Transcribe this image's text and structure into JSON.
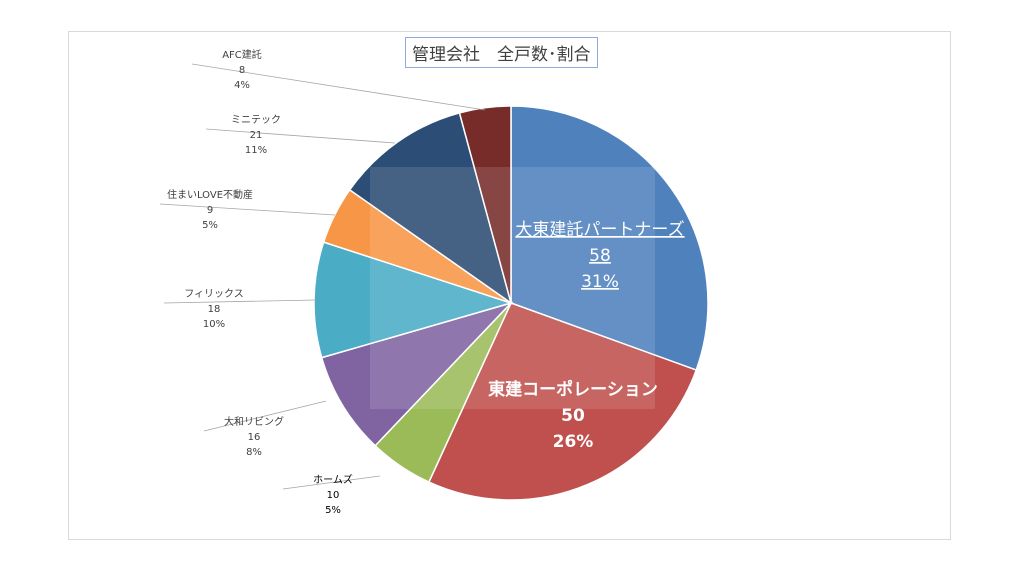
{
  "chart_data": {
    "type": "pie",
    "title": "管理会社　全戸数･割合",
    "slices": [
      {
        "name": "大東建託パートナーズ",
        "value": 58,
        "percent": "31%",
        "color": "#4f81bd"
      },
      {
        "name": "東建コーポレーション",
        "value": 50,
        "percent": "26%",
        "color": "#c0504d"
      },
      {
        "name": "ホームズ",
        "value": 10,
        "percent": "5%",
        "color": "#9bbb59"
      },
      {
        "name": "大和リビング",
        "value": 16,
        "percent": "8%",
        "color": "#8064a2"
      },
      {
        "name": "フィリックス",
        "value": 18,
        "percent": "10%",
        "color": "#4bacc6"
      },
      {
        "name": "住まいLOVE不動産",
        "value": 9,
        "percent": "5%",
        "color": "#f79646"
      },
      {
        "name": "ミニテック",
        "value": 21,
        "percent": "11%",
        "color": "#2c4d75"
      },
      {
        "name": "AFC建託",
        "value": 8,
        "percent": "4%",
        "color": "#772c2a"
      }
    ],
    "legend": "none"
  }
}
